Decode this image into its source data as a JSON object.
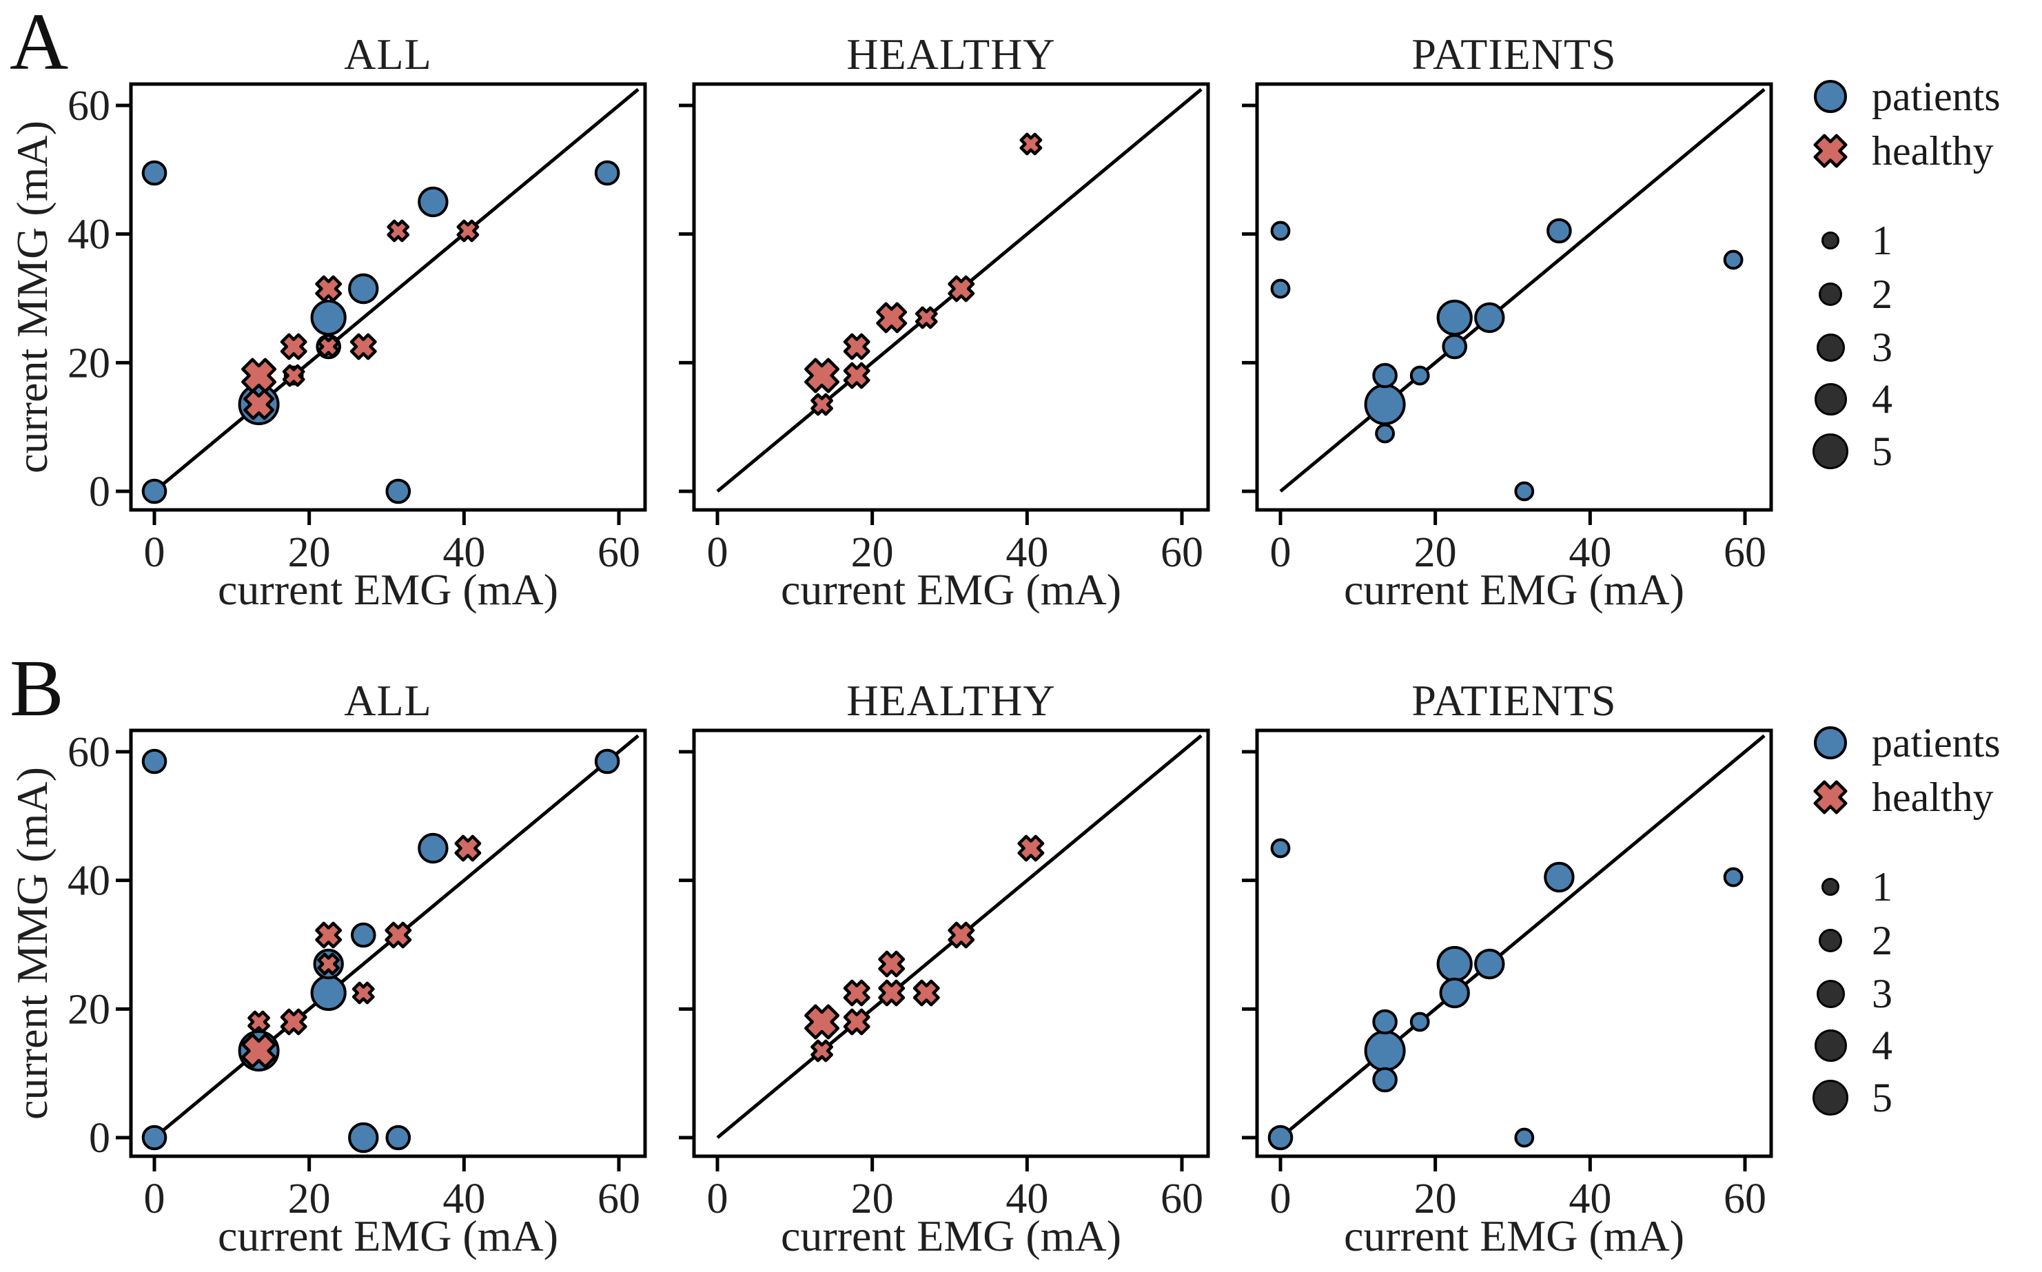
{
  "figure": {
    "panel_row_labels": [
      "A",
      "B"
    ],
    "colors": {
      "patients": "#4a80b0",
      "healthy": "#d06a62",
      "size_legend_dot": "#2f2f2f",
      "identity_line": "#000000",
      "text": "#1f1f1f"
    },
    "axis": {
      "x_label": "current EMG (mA)",
      "y_label": "current MMG (mA)",
      "ticks": [
        0,
        20,
        40,
        60
      ],
      "x_range": [
        -3,
        63.4
      ],
      "y_range": [
        -2.9,
        63.3
      ],
      "identity_line": {
        "from": [
          0,
          0
        ],
        "to": [
          62.5,
          62.5
        ]
      }
    },
    "legend": {
      "patients_label": "patients",
      "healthy_label": "healthy",
      "size_values": [
        "1",
        "2",
        "3",
        "4",
        "5"
      ]
    }
  },
  "chart_data": [
    {
      "type": "scatter",
      "row": "A",
      "title": "ALL",
      "show_y_tick_labels": true,
      "xlabel": "current EMG (mA)",
      "ylabel": "current MMG (mA)",
      "series": [
        {
          "name": "patients",
          "marker": "circle",
          "points": [
            [
              0,
              0,
              2
            ],
            [
              0,
              49.5,
              2
            ],
            [
              13.5,
              13.5,
              5
            ],
            [
              18,
              18,
              1
            ],
            [
              22.5,
              22.5,
              2
            ],
            [
              22.5,
              27,
              4
            ],
            [
              27,
              31.5,
              3
            ],
            [
              31.5,
              0,
              2
            ],
            [
              36,
              45,
              3
            ],
            [
              58.5,
              49.5,
              2
            ]
          ]
        },
        {
          "name": "healthy",
          "marker": "x",
          "points": [
            [
              13.5,
              13.5,
              4
            ],
            [
              13.5,
              18,
              5
            ],
            [
              18,
              18,
              2
            ],
            [
              18,
              22.5,
              3
            ],
            [
              22.5,
              22.5,
              2
            ],
            [
              22.5,
              31.5,
              3
            ],
            [
              27,
              22.5,
              3
            ],
            [
              31.5,
              40.5,
              2
            ],
            [
              40.5,
              40.5,
              2
            ]
          ]
        }
      ]
    },
    {
      "type": "scatter",
      "row": "A",
      "title": "HEALTHY",
      "show_y_tick_labels": false,
      "xlabel": "current EMG (mA)",
      "ylabel": "current MMG (mA)",
      "series": [
        {
          "name": "healthy",
          "marker": "x",
          "points": [
            [
              13.5,
              13.5,
              2
            ],
            [
              13.5,
              18,
              5
            ],
            [
              18,
              18,
              3
            ],
            [
              18,
              22.5,
              3
            ],
            [
              22.5,
              27,
              4
            ],
            [
              27,
              27,
              2
            ],
            [
              31.5,
              31.5,
              3
            ],
            [
              40.5,
              54,
              2
            ]
          ]
        }
      ]
    },
    {
      "type": "scatter",
      "row": "A",
      "title": "PATIENTS",
      "show_y_tick_labels": false,
      "xlabel": "current EMG (mA)",
      "ylabel": "current MMG (mA)",
      "series": [
        {
          "name": "patients",
          "marker": "circle",
          "points": [
            [
              0,
              31.5,
              1
            ],
            [
              0,
              40.5,
              1
            ],
            [
              13.5,
              9,
              1
            ],
            [
              13.5,
              13.5,
              5
            ],
            [
              13.5,
              18,
              2
            ],
            [
              18,
              18,
              1
            ],
            [
              22.5,
              22.5,
              2
            ],
            [
              22.5,
              27,
              4
            ],
            [
              27,
              27,
              3
            ],
            [
              31.5,
              0,
              1
            ],
            [
              36,
              40.5,
              2
            ],
            [
              58.5,
              36,
              1
            ]
          ]
        }
      ]
    },
    {
      "type": "scatter",
      "row": "B",
      "title": "ALL",
      "show_y_tick_labels": true,
      "xlabel": "current EMG (mA)",
      "ylabel": "current MMG (mA)",
      "series": [
        {
          "name": "patients",
          "marker": "circle",
          "points": [
            [
              0,
              0,
              2
            ],
            [
              0,
              58.5,
              2
            ],
            [
              13.5,
              13.5,
              5
            ],
            [
              22.5,
              22.5,
              4
            ],
            [
              22.5,
              27,
              3
            ],
            [
              27,
              31.5,
              2
            ],
            [
              27,
              0,
              3
            ],
            [
              31.5,
              0,
              2
            ],
            [
              36,
              45,
              3
            ],
            [
              58.5,
              58.5,
              2
            ]
          ]
        },
        {
          "name": "healthy",
          "marker": "x",
          "points": [
            [
              13.5,
              13.5,
              5
            ],
            [
              13.5,
              18,
              2
            ],
            [
              18,
              18,
              3
            ],
            [
              22.5,
              27,
              2
            ],
            [
              22.5,
              31.5,
              3
            ],
            [
              27,
              22.5,
              2
            ],
            [
              31.5,
              31.5,
              3
            ],
            [
              40.5,
              45,
              3
            ]
          ]
        }
      ]
    },
    {
      "type": "scatter",
      "row": "B",
      "title": "HEALTHY",
      "show_y_tick_labels": false,
      "xlabel": "current EMG (mA)",
      "ylabel": "current MMG (mA)",
      "series": [
        {
          "name": "healthy",
          "marker": "x",
          "points": [
            [
              13.5,
              13.5,
              2
            ],
            [
              13.5,
              18,
              5
            ],
            [
              18,
              18,
              3
            ],
            [
              18,
              22.5,
              3
            ],
            [
              22.5,
              22.5,
              3
            ],
            [
              22.5,
              27,
              3
            ],
            [
              27,
              22.5,
              3
            ],
            [
              31.5,
              31.5,
              3
            ],
            [
              40.5,
              45,
              3
            ]
          ]
        }
      ]
    },
    {
      "type": "scatter",
      "row": "B",
      "title": "PATIENTS",
      "show_y_tick_labels": false,
      "xlabel": "current EMG (mA)",
      "ylabel": "current MMG (mA)",
      "series": [
        {
          "name": "patients",
          "marker": "circle",
          "points": [
            [
              0,
              0,
              2
            ],
            [
              0,
              45,
              1
            ],
            [
              13.5,
              9,
              2
            ],
            [
              13.5,
              13.5,
              5
            ],
            [
              13.5,
              18,
              2
            ],
            [
              18,
              18,
              1
            ],
            [
              22.5,
              22.5,
              3
            ],
            [
              22.5,
              27,
              4
            ],
            [
              27,
              27,
              3
            ],
            [
              31.5,
              0,
              1
            ],
            [
              36,
              40.5,
              3
            ],
            [
              58.5,
              40.5,
              1
            ]
          ]
        }
      ]
    }
  ]
}
